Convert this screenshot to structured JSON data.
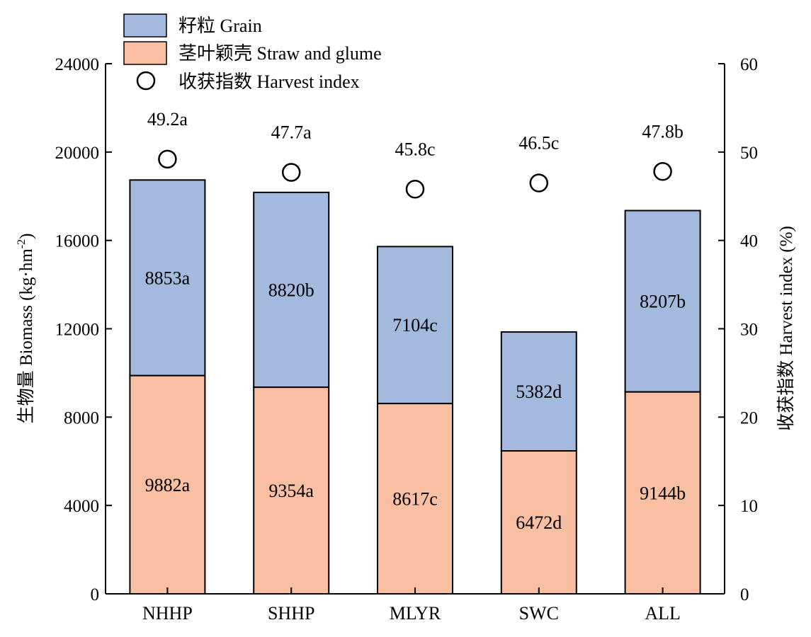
{
  "chart_data": {
    "type": "bar",
    "stacked": true,
    "categories": [
      "NHHP",
      "SHHP",
      "MLYR",
      "SWC",
      "ALL"
    ],
    "series": [
      {
        "name": "茎叶颖壳 Straw and glume",
        "color": "#f9bfa2",
        "values": [
          9882,
          9354,
          8617,
          6472,
          9144
        ],
        "labels": [
          "9882a",
          "9354a",
          "8617c",
          "6472d",
          "9144b"
        ]
      },
      {
        "name": "籽粒 Grain",
        "color": "#a3b9dd",
        "values": [
          8853,
          8820,
          7104,
          5382,
          8207
        ],
        "labels": [
          "8853a",
          "8820b",
          "7104c",
          "5382d",
          "8207b"
        ]
      }
    ],
    "harvest_index": {
      "name": "收获指数 Harvest index",
      "values": [
        49.2,
        47.7,
        45.8,
        46.5,
        47.8
      ],
      "labels": [
        "49.2a",
        "47.7a",
        "45.8c",
        "46.5c",
        "47.8b"
      ]
    },
    "ylabel_left": "生物量 Biomass (kg·hm",
    "ylabel_left_sup": "-2",
    "ylabel_left_end": ")",
    "ylabel_right": "收获指数 Harvest index (%)",
    "ylim_left": [
      0,
      24000
    ],
    "yticks_left": [
      "0",
      "4000",
      "8000",
      "12000",
      "16000",
      "20000",
      "24000"
    ],
    "ylim_right": [
      0,
      60
    ],
    "yticks_right": [
      "0",
      "10",
      "20",
      "30",
      "40",
      "50",
      "60"
    ],
    "legend_position": "top-left",
    "grid": false
  }
}
